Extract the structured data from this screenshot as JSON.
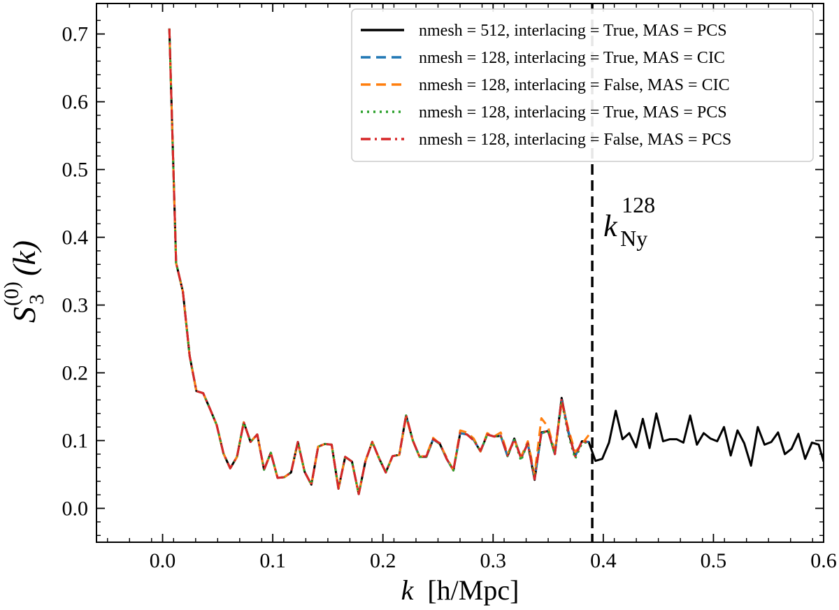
{
  "chart_data": {
    "type": "line",
    "xlabel_main": "k",
    "xlabel_unit": "[h/Mpc]",
    "ylabel_main": "S",
    "ylabel_sub": "3",
    "ylabel_sup": "(0)",
    "ylabel_arg": "(k)",
    "xlim": [
      -0.06,
      0.6
    ],
    "ylim": [
      -0.05,
      0.745
    ],
    "xticks": [
      0.0,
      0.1,
      0.2,
      0.3,
      0.4,
      0.5,
      0.6
    ],
    "xtick_labels": [
      "0.0",
      "0.1",
      "0.2",
      "0.3",
      "0.4",
      "0.5",
      "0.6"
    ],
    "yticks": [
      0.0,
      0.1,
      0.2,
      0.3,
      0.4,
      0.5,
      0.6,
      0.7
    ],
    "ytick_labels": [
      "0.0",
      "0.1",
      "0.2",
      "0.3",
      "0.4",
      "0.5",
      "0.6",
      "0.7"
    ],
    "vline": {
      "x": 0.39,
      "label_main": "k",
      "label_sub": "Ny",
      "label_sup": "128"
    },
    "legend_position": "top-right",
    "series": [
      {
        "name": "nmesh = 512, interlacing = True, MAS = PCS",
        "color": "#000000",
        "style": "solid",
        "linewidth": 3.0,
        "x": [
          0.00614,
          0.01228,
          0.01842,
          0.02456,
          0.0307,
          0.03683,
          0.04297,
          0.04911,
          0.05525,
          0.06139,
          0.06753,
          0.07367,
          0.07981,
          0.08595,
          0.09209,
          0.09823,
          0.10437,
          0.11051,
          0.11664,
          0.12278,
          0.12892,
          0.13506,
          0.1412,
          0.14734,
          0.15348,
          0.15962,
          0.16576,
          0.1719,
          0.17804,
          0.18418,
          0.19032,
          0.19645,
          0.20259,
          0.20873,
          0.21487,
          0.22101,
          0.22715,
          0.23329,
          0.23943,
          0.24557,
          0.25171,
          0.25785,
          0.26399,
          0.27013,
          0.27626,
          0.2824,
          0.28854,
          0.29468,
          0.30082,
          0.30696,
          0.3131,
          0.31924,
          0.32538,
          0.33152,
          0.33766,
          0.3438,
          0.34994,
          0.35607,
          0.36221,
          0.36835,
          0.37449,
          0.38063,
          0.38677,
          0.39291,
          0.39905,
          0.40519,
          0.41133,
          0.41747,
          0.42361,
          0.42975,
          0.43588,
          0.44202,
          0.44816,
          0.4543,
          0.46044,
          0.46658,
          0.47272,
          0.47886,
          0.485,
          0.49114,
          0.49728,
          0.50342,
          0.50956,
          0.5157,
          0.52183,
          0.52797,
          0.53411,
          0.54025,
          0.54639,
          0.55253,
          0.55867,
          0.56481,
          0.57095,
          0.57709,
          0.58323,
          0.58937,
          0.59551,
          0.6
        ],
        "y": [
          0.708,
          0.362,
          0.32,
          0.225,
          0.173,
          0.17,
          0.147,
          0.123,
          0.081,
          0.059,
          0.076,
          0.127,
          0.098,
          0.109,
          0.057,
          0.082,
          0.045,
          0.046,
          0.053,
          0.098,
          0.054,
          0.035,
          0.091,
          0.095,
          0.094,
          0.029,
          0.076,
          0.069,
          0.021,
          0.07,
          0.098,
          0.074,
          0.053,
          0.077,
          0.079,
          0.137,
          0.1,
          0.076,
          0.076,
          0.102,
          0.095,
          0.073,
          0.056,
          0.111,
          0.109,
          0.101,
          0.084,
          0.109,
          0.106,
          0.107,
          0.077,
          0.103,
          0.074,
          0.096,
          0.042,
          0.112,
          0.114,
          0.08,
          0.163,
          0.112,
          0.077,
          0.099,
          0.098,
          0.07,
          0.073,
          0.097,
          0.144,
          0.102,
          0.111,
          0.09,
          0.132,
          0.089,
          0.14,
          0.099,
          0.102,
          0.102,
          0.097,
          0.137,
          0.094,
          0.111,
          0.103,
          0.099,
          0.12,
          0.078,
          0.115,
          0.096,
          0.063,
          0.12,
          0.094,
          0.098,
          0.112,
          0.08,
          0.088,
          0.11,
          0.073,
          0.097,
          0.094,
          0.069
        ]
      },
      {
        "name": "nmesh = 128, interlacing = True, MAS = CIC",
        "color": "#1f77b4",
        "style": "dashed",
        "linewidth": 3.0,
        "x": [
          0.00614,
          0.01228,
          0.01842,
          0.02456,
          0.0307,
          0.03683,
          0.04297,
          0.04911,
          0.05525,
          0.06139,
          0.06753,
          0.07367,
          0.07981,
          0.08595,
          0.09209,
          0.09823,
          0.10437,
          0.11051,
          0.11664,
          0.12278,
          0.12892,
          0.13506,
          0.1412,
          0.14734,
          0.15348,
          0.15962,
          0.16576,
          0.1719,
          0.17804,
          0.18418,
          0.19032,
          0.19645,
          0.20259,
          0.20873,
          0.21487,
          0.22101,
          0.22715,
          0.23329,
          0.23943,
          0.24557,
          0.25171,
          0.25785,
          0.26399,
          0.27013,
          0.27626,
          0.2824,
          0.28854,
          0.29468,
          0.30082,
          0.30696,
          0.3131,
          0.31924,
          0.32538,
          0.33152,
          0.33766,
          0.3438,
          0.34994,
          0.35607,
          0.36221,
          0.36835,
          0.37449,
          0.38063,
          0.38677
        ],
        "y": [
          0.708,
          0.362,
          0.32,
          0.225,
          0.173,
          0.17,
          0.147,
          0.123,
          0.081,
          0.059,
          0.076,
          0.127,
          0.098,
          0.109,
          0.057,
          0.082,
          0.045,
          0.046,
          0.053,
          0.098,
          0.054,
          0.035,
          0.091,
          0.095,
          0.094,
          0.029,
          0.076,
          0.069,
          0.021,
          0.07,
          0.098,
          0.074,
          0.053,
          0.077,
          0.079,
          0.137,
          0.1,
          0.076,
          0.076,
          0.102,
          0.095,
          0.073,
          0.056,
          0.111,
          0.109,
          0.101,
          0.084,
          0.109,
          0.106,
          0.107,
          0.077,
          0.103,
          0.074,
          0.096,
          0.044,
          0.11,
          0.117,
          0.081,
          0.16,
          0.114,
          0.077,
          0.098,
          0.098
        ]
      },
      {
        "name": "nmesh = 128, interlacing = False, MAS = CIC",
        "color": "#ff7f0e",
        "style": "dashed",
        "linewidth": 3.0,
        "x": [
          0.00614,
          0.01228,
          0.01842,
          0.02456,
          0.0307,
          0.03683,
          0.04297,
          0.04911,
          0.05525,
          0.06139,
          0.06753,
          0.07367,
          0.07981,
          0.08595,
          0.09209,
          0.09823,
          0.10437,
          0.11051,
          0.11664,
          0.12278,
          0.12892,
          0.13506,
          0.1412,
          0.14734,
          0.15348,
          0.15962,
          0.16576,
          0.1719,
          0.17804,
          0.18418,
          0.19032,
          0.19645,
          0.20259,
          0.20873,
          0.21487,
          0.22101,
          0.22715,
          0.23329,
          0.23943,
          0.24557,
          0.25171,
          0.25785,
          0.26399,
          0.27013,
          0.27626,
          0.2824,
          0.28854,
          0.29468,
          0.30082,
          0.30696,
          0.3131,
          0.31924,
          0.32538,
          0.33152,
          0.33766,
          0.3438,
          0.34994,
          0.35607,
          0.36221,
          0.36835,
          0.37449,
          0.38063,
          0.38677
        ],
        "y": [
          0.708,
          0.362,
          0.32,
          0.225,
          0.173,
          0.17,
          0.147,
          0.123,
          0.081,
          0.059,
          0.076,
          0.127,
          0.098,
          0.109,
          0.057,
          0.082,
          0.045,
          0.046,
          0.053,
          0.098,
          0.054,
          0.035,
          0.091,
          0.095,
          0.094,
          0.029,
          0.076,
          0.069,
          0.021,
          0.07,
          0.098,
          0.074,
          0.053,
          0.077,
          0.079,
          0.135,
          0.1,
          0.076,
          0.078,
          0.104,
          0.095,
          0.075,
          0.056,
          0.115,
          0.112,
          0.103,
          0.084,
          0.111,
          0.106,
          0.112,
          0.08,
          0.101,
          0.076,
          0.099,
          0.05,
          0.133,
          0.12,
          0.084,
          0.157,
          0.117,
          0.083,
          0.095,
          0.108
        ]
      },
      {
        "name": "nmesh = 128, interlacing = True, MAS = PCS",
        "color": "#2ca02c",
        "style": "dotted",
        "linewidth": 3.0,
        "x": [
          0.00614,
          0.01228,
          0.01842,
          0.02456,
          0.0307,
          0.03683,
          0.04297,
          0.04911,
          0.05525,
          0.06139,
          0.06753,
          0.07367,
          0.07981,
          0.08595,
          0.09209,
          0.09823,
          0.10437,
          0.11051,
          0.11664,
          0.12278,
          0.12892,
          0.13506,
          0.1412,
          0.14734,
          0.15348,
          0.15962,
          0.16576,
          0.1719,
          0.17804,
          0.18418,
          0.19032,
          0.19645,
          0.20259,
          0.20873,
          0.21487,
          0.22101,
          0.22715,
          0.23329,
          0.23943,
          0.24557,
          0.25171,
          0.25785,
          0.26399,
          0.27013,
          0.27626,
          0.2824,
          0.28854,
          0.29468,
          0.30082,
          0.30696,
          0.3131,
          0.31924,
          0.32538,
          0.33152,
          0.33766,
          0.3438,
          0.34994,
          0.35607,
          0.36221,
          0.36835,
          0.37449,
          0.38063,
          0.38677
        ],
        "y": [
          0.708,
          0.362,
          0.32,
          0.225,
          0.173,
          0.17,
          0.147,
          0.123,
          0.081,
          0.059,
          0.076,
          0.127,
          0.098,
          0.109,
          0.057,
          0.082,
          0.045,
          0.046,
          0.053,
          0.098,
          0.054,
          0.035,
          0.091,
          0.095,
          0.094,
          0.029,
          0.076,
          0.069,
          0.021,
          0.07,
          0.098,
          0.074,
          0.053,
          0.077,
          0.079,
          0.137,
          0.1,
          0.076,
          0.076,
          0.102,
          0.095,
          0.073,
          0.056,
          0.111,
          0.109,
          0.101,
          0.084,
          0.109,
          0.106,
          0.107,
          0.077,
          0.101,
          0.07,
          0.098,
          0.045,
          0.11,
          0.115,
          0.079,
          0.158,
          0.108,
          0.073,
          0.096,
          0.098
        ]
      },
      {
        "name": "nmesh = 128, interlacing = False, MAS = PCS",
        "color": "#d62728",
        "style": "dashdot",
        "linewidth": 3.0,
        "x": [
          0.00614,
          0.01228,
          0.01842,
          0.02456,
          0.0307,
          0.03683,
          0.04297,
          0.04911,
          0.05525,
          0.06139,
          0.06753,
          0.07367,
          0.07981,
          0.08595,
          0.09209,
          0.09823,
          0.10437,
          0.11051,
          0.11664,
          0.12278,
          0.12892,
          0.13506,
          0.1412,
          0.14734,
          0.15348,
          0.15962,
          0.16576,
          0.1719,
          0.17804,
          0.18418,
          0.19032,
          0.19645,
          0.20259,
          0.20873,
          0.21487,
          0.22101,
          0.22715,
          0.23329,
          0.23943,
          0.24557,
          0.25171,
          0.25785,
          0.26399,
          0.27013,
          0.27626,
          0.2824,
          0.28854,
          0.29468,
          0.30082,
          0.30696,
          0.3131,
          0.31924,
          0.32538,
          0.33152,
          0.33766,
          0.3438,
          0.34994,
          0.35607,
          0.36221,
          0.36835,
          0.37449,
          0.38063,
          0.38677
        ],
        "y": [
          0.708,
          0.362,
          0.32,
          0.225,
          0.173,
          0.17,
          0.147,
          0.123,
          0.081,
          0.059,
          0.076,
          0.127,
          0.098,
          0.109,
          0.057,
          0.082,
          0.045,
          0.046,
          0.053,
          0.098,
          0.054,
          0.035,
          0.091,
          0.095,
          0.094,
          0.029,
          0.076,
          0.069,
          0.021,
          0.07,
          0.098,
          0.074,
          0.053,
          0.077,
          0.079,
          0.138,
          0.1,
          0.076,
          0.077,
          0.102,
          0.096,
          0.073,
          0.057,
          0.111,
          0.109,
          0.1,
          0.085,
          0.109,
          0.106,
          0.107,
          0.078,
          0.102,
          0.074,
          0.096,
          0.043,
          0.112,
          0.114,
          0.08,
          0.162,
          0.112,
          0.077,
          0.099,
          0.098
        ]
      }
    ]
  }
}
